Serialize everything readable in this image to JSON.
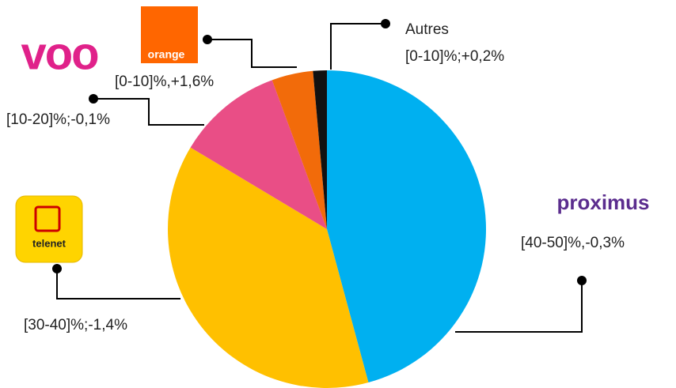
{
  "chart_data": {
    "type": "pie",
    "categories": [
      "proximus",
      "telenet",
      "voo",
      "orange",
      "Autres"
    ],
    "values": [
      45.8,
      37.8,
      10.8,
      4.2,
      1.4
    ],
    "value_labels": [
      "[40-50]%,-0,3%",
      "[30-40]%;-1,4%",
      "[10-20]%;-0,1%",
      "[0-10]%,+1,6%",
      "[0-10]%;+0,2%"
    ],
    "colors": [
      "#00b0f0",
      "#ffc000",
      "#e94e86",
      "#f26b0a",
      "#111111"
    ]
  }
}
